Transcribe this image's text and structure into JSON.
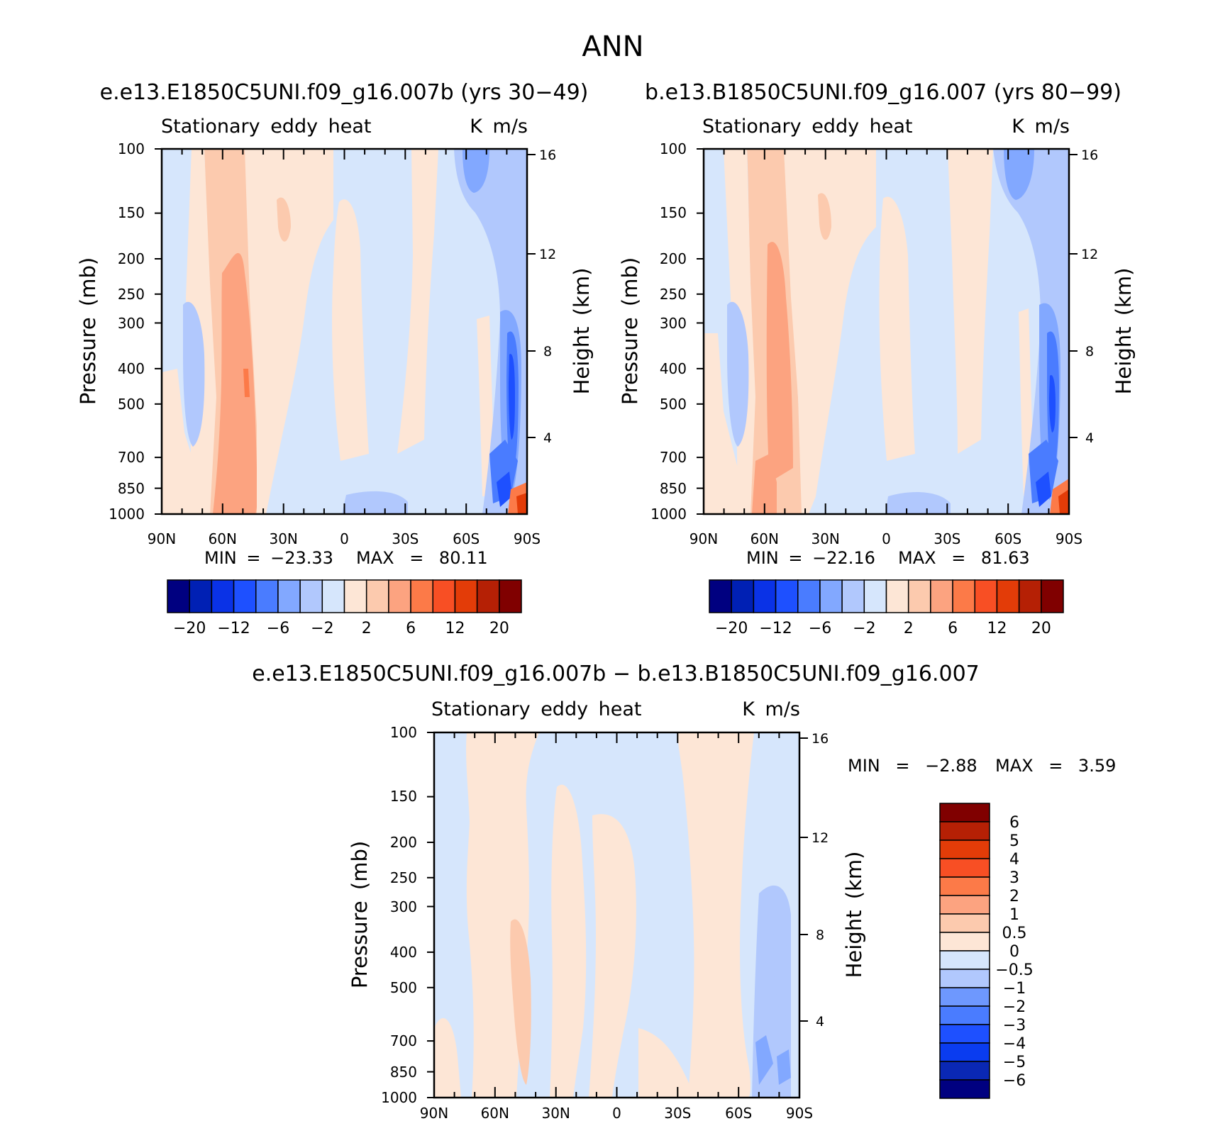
{
  "title": "ANN",
  "colors": {
    "top_palette": [
      "#000080",
      "#0020b4",
      "#0a32e6",
      "#1e50ff",
      "#4a7cff",
      "#82a8ff",
      "#b1c8fd",
      "#d6e6fc",
      "#fde6d6",
      "#fccaae",
      "#fca380",
      "#fc7a48",
      "#f84f24",
      "#e33c08",
      "#b52005",
      "#800000"
    ],
    "diff_palette": [
      "#000080",
      "#0a28b4",
      "#0a3cf0",
      "#1e50ff",
      "#4a7cff",
      "#6e98fe",
      "#b1c8fd",
      "#d6e6fc",
      "#fde6d6",
      "#fccaae",
      "#fca380",
      "#fc7a48",
      "#f84f24",
      "#e33c08",
      "#b52005",
      "#800000"
    ]
  },
  "chart_data": [
    {
      "type": "heatmap",
      "panel_title": "e.e13.E1850C5UNI.f09_g16.007b (yrs 30−49)",
      "left_label": "Stationary eddy heat",
      "right_label": "K m/s",
      "ylabel": "Pressure (mb)",
      "ylabel_right": "Height (km)",
      "x_ticks": [
        "90N",
        "60N",
        "30N",
        "0",
        "30S",
        "60S",
        "90S"
      ],
      "y_ticks": [
        "100",
        "150",
        "200",
        "250",
        "300",
        "400",
        "500",
        "700",
        "850",
        "1000"
      ],
      "y_ticks_right": [
        "16",
        "12",
        "8",
        "4"
      ],
      "min_label": "MIN = −23.33",
      "max_label": "MAX = 80.11",
      "min": -23.33,
      "max": 80.11,
      "colorbar_labels": [
        "−20",
        "−12",
        "−6",
        "−2",
        "2",
        "6",
        "12",
        "20"
      ]
    },
    {
      "type": "heatmap",
      "panel_title": "b.e13.B1850C5UNI.f09_g16.007 (yrs 80−99)",
      "left_label": "Stationary eddy heat",
      "right_label": "K m/s",
      "ylabel": "Pressure (mb)",
      "ylabel_right": "Height (km)",
      "x_ticks": [
        "90N",
        "60N",
        "30N",
        "0",
        "30S",
        "60S",
        "90S"
      ],
      "y_ticks": [
        "100",
        "150",
        "200",
        "250",
        "300",
        "400",
        "500",
        "700",
        "850",
        "1000"
      ],
      "y_ticks_right": [
        "16",
        "12",
        "8",
        "4"
      ],
      "min_label": "MIN = −22.16",
      "max_label": "MAX = 81.63",
      "min": -22.16,
      "max": 81.63,
      "colorbar_labels": [
        "−20",
        "−12",
        "−6",
        "−2",
        "2",
        "6",
        "12",
        "20"
      ]
    },
    {
      "type": "heatmap",
      "panel_title": "e.e13.E1850C5UNI.f09_g16.007b − b.e13.B1850C5UNI.f09_g16.007",
      "left_label": "Stationary eddy heat",
      "right_label": "K m/s",
      "ylabel": "Pressure (mb)",
      "ylabel_right": "Height (km)",
      "x_ticks": [
        "90N",
        "60N",
        "30N",
        "0",
        "30S",
        "60S",
        "90S"
      ],
      "y_ticks": [
        "100",
        "150",
        "200",
        "250",
        "300",
        "400",
        "500",
        "700",
        "850",
        "1000"
      ],
      "y_ticks_right": [
        "16",
        "12",
        "8",
        "4"
      ],
      "min_label": "MIN = −2.88",
      "max_label": "MAX = 3.59",
      "min": -2.88,
      "max": 3.59,
      "colorbar_labels": [
        "6",
        "5",
        "4",
        "3",
        "2",
        "1",
        "0.5",
        "0",
        "−0.5",
        "−1",
        "−2",
        "−3",
        "−4",
        "−5",
        "−6"
      ]
    }
  ]
}
